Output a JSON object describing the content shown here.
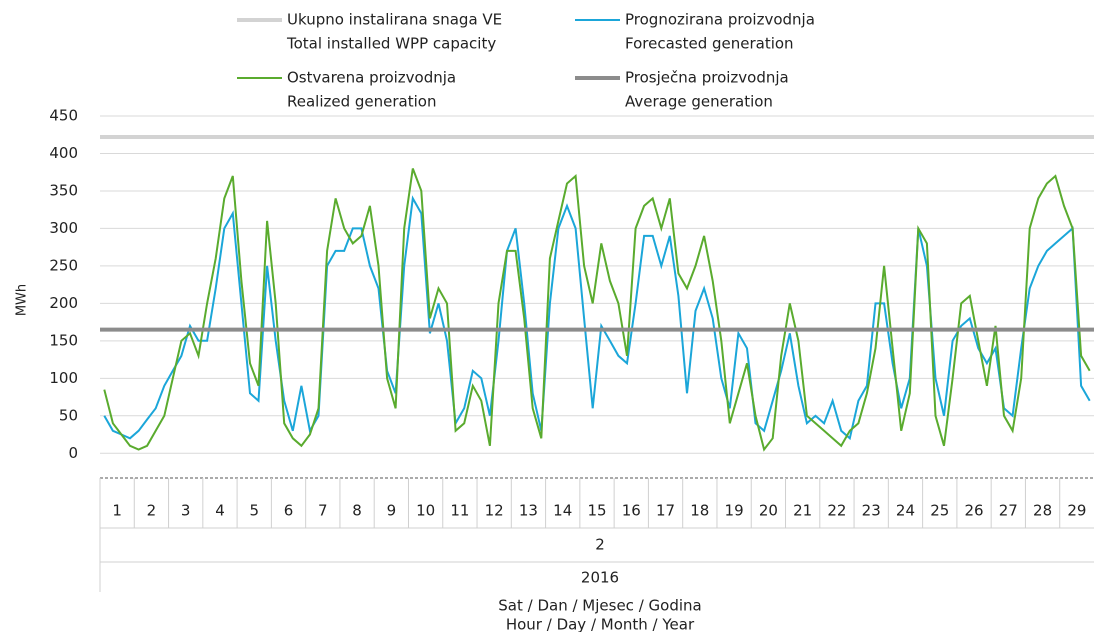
{
  "chart_data": {
    "type": "line",
    "y_label": "MWh",
    "x_label": [
      "Sat / Dan / Mjesec / Godina",
      "Hour / Day / Month / Year"
    ],
    "month": "2",
    "year": "2016",
    "ylim": [
      -33,
      450
    ],
    "yticks": [
      0,
      50,
      100,
      150,
      200,
      250,
      300,
      350,
      400,
      450
    ],
    "grid": true,
    "categories": [
      "1",
      "2",
      "3",
      "4",
      "5",
      "6",
      "7",
      "8",
      "9",
      "10",
      "11",
      "12",
      "13",
      "14",
      "15",
      "16",
      "17",
      "18",
      "19",
      "20",
      "21",
      "22",
      "23",
      "24",
      "25",
      "26",
      "27",
      "28",
      "29"
    ],
    "series": [
      {
        "name": [
          "Ukupno instalirana snaga VE",
          "Total installed WPP capacity"
        ],
        "color": "#d3d3d3",
        "value": 422
      },
      {
        "name": [
          "Prognozirana proizvodnja",
          "Forecasted generation"
        ],
        "color": "#1ba6d9",
        "values": [
          [
            50,
            30,
            25,
            20
          ],
          [
            30,
            45,
            60,
            90
          ],
          [
            110,
            130,
            170,
            150
          ],
          [
            150,
            220,
            300,
            320
          ],
          [
            200,
            80,
            70,
            250
          ],
          [
            150,
            70,
            30,
            90
          ],
          [
            30,
            50,
            250,
            270
          ],
          [
            270,
            300,
            300,
            250
          ],
          [
            220,
            110,
            80,
            250
          ],
          [
            340,
            320,
            160,
            200
          ],
          [
            150,
            40,
            60,
            110
          ],
          [
            100,
            50,
            150,
            270
          ],
          [
            300,
            200,
            80,
            30
          ],
          [
            200,
            300,
            330,
            300
          ],
          [
            180,
            60,
            170,
            150
          ],
          [
            130,
            120,
            200,
            290
          ],
          [
            290,
            250,
            290,
            210
          ],
          [
            80,
            190,
            220,
            180
          ],
          [
            100,
            60,
            160,
            140
          ],
          [
            40,
            30,
            70,
            110
          ],
          [
            160,
            90,
            40,
            50
          ],
          [
            40,
            70,
            30,
            20
          ],
          [
            70,
            90,
            200,
            200
          ],
          [
            120,
            60,
            100,
            300
          ],
          [
            250,
            100,
            50,
            150
          ],
          [
            170,
            180,
            140,
            120
          ],
          [
            140,
            60,
            50,
            140
          ],
          [
            220,
            250,
            270,
            280
          ],
          [
            290,
            300,
            90,
            70
          ]
        ]
      },
      {
        "name": [
          "Ostvarena proizvodnja",
          "Realized generation"
        ],
        "color": "#5aab2e",
        "values": [
          [
            85,
            40,
            25,
            10
          ],
          [
            5,
            10,
            30,
            50
          ],
          [
            100,
            150,
            160,
            130
          ],
          [
            200,
            260,
            340,
            370
          ],
          [
            230,
            120,
            90,
            310
          ],
          [
            200,
            40,
            20,
            10
          ],
          [
            25,
            60,
            270,
            340
          ],
          [
            300,
            280,
            290,
            330
          ],
          [
            250,
            100,
            60,
            300
          ],
          [
            380,
            350,
            180,
            220
          ],
          [
            200,
            30,
            40,
            90
          ],
          [
            70,
            10,
            200,
            270
          ],
          [
            270,
            180,
            60,
            20
          ],
          [
            260,
            310,
            360,
            370
          ],
          [
            250,
            200,
            280,
            230
          ],
          [
            200,
            130,
            300,
            330
          ],
          [
            340,
            300,
            340,
            240
          ],
          [
            220,
            250,
            290,
            230
          ],
          [
            150,
            40,
            80,
            120
          ],
          [
            50,
            5,
            20,
            130
          ],
          [
            200,
            150,
            50,
            40
          ],
          [
            30,
            20,
            10,
            30
          ],
          [
            40,
            80,
            140,
            250
          ],
          [
            140,
            30,
            80,
            300
          ],
          [
            280,
            50,
            10,
            100
          ],
          [
            200,
            210,
            150,
            90
          ],
          [
            170,
            50,
            30,
            100
          ],
          [
            300,
            340,
            360,
            370
          ],
          [
            330,
            300,
            130,
            110
          ]
        ]
      },
      {
        "name": [
          "Prosječna proizvodnja",
          "Average generation"
        ],
        "color": "#8c8c8c",
        "value": 165
      }
    ]
  }
}
